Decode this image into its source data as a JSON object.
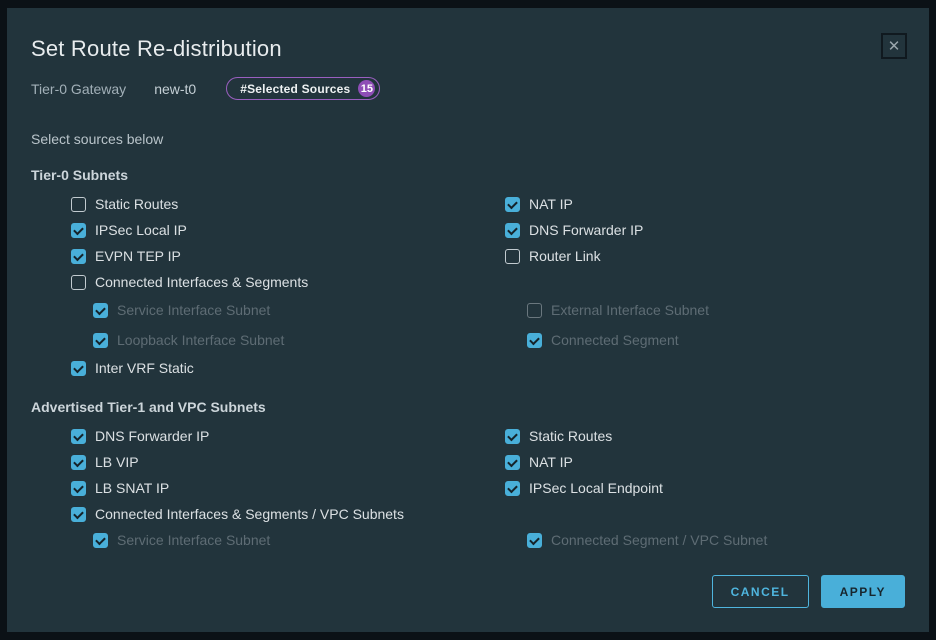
{
  "dialog": {
    "title": "Set Route Re-distribution",
    "close_icon": "✕",
    "gateway_label": "Tier-0 Gateway",
    "gateway_value": "new-t0",
    "selected_sources_label": "#Selected Sources",
    "selected_sources_count": "15",
    "instruction": "Select sources below"
  },
  "sections": [
    {
      "header": "Tier-0 Subnets",
      "left": [
        {
          "label": "Static Routes",
          "checked": false
        },
        {
          "label": "IPSec Local IP",
          "checked": true
        },
        {
          "label": "EVPN TEP IP",
          "checked": true
        },
        {
          "label": "Connected Interfaces & Segments",
          "checked": false
        },
        {
          "label": "Service Interface Subnet",
          "checked": true,
          "disabled": true,
          "indent": true
        },
        {
          "label": "Loopback Interface Subnet",
          "checked": true,
          "disabled": true,
          "indent": true
        },
        {
          "label": "Inter VRF Static",
          "checked": true
        }
      ],
      "right": [
        {
          "label": "NAT IP",
          "checked": true
        },
        {
          "label": "DNS Forwarder IP",
          "checked": true
        },
        {
          "label": "Router Link",
          "checked": false
        },
        {
          "label": "External Interface Subnet",
          "checked": false,
          "disabled": true,
          "indent": true
        },
        {
          "label": "Connected Segment",
          "checked": true,
          "disabled": true,
          "indent": true
        }
      ]
    },
    {
      "header": "Advertised Tier-1 and VPC Subnets",
      "left": [
        {
          "label": "DNS Forwarder IP",
          "checked": true
        },
        {
          "label": "LB VIP",
          "checked": true
        },
        {
          "label": "LB SNAT IP",
          "checked": true
        },
        {
          "label": "Connected Interfaces & Segments / VPC Subnets",
          "checked": true
        },
        {
          "label": "Service Interface Subnet",
          "checked": true,
          "disabled": true,
          "indent": true
        }
      ],
      "right": [
        {
          "label": "Static Routes",
          "checked": true
        },
        {
          "label": "NAT IP",
          "checked": true
        },
        {
          "label": "IPSec Local Endpoint",
          "checked": true
        },
        {
          "label": "Connected Segment / VPC Subnet",
          "checked": true,
          "disabled": true,
          "indent": true
        }
      ]
    }
  ],
  "footer": {
    "cancel_label": "CANCEL",
    "apply_label": "APPLY"
  },
  "colors": {
    "accent": "#49afd9",
    "badge_purple": "#9a5fc0",
    "dialog_bg": "#22343c"
  }
}
